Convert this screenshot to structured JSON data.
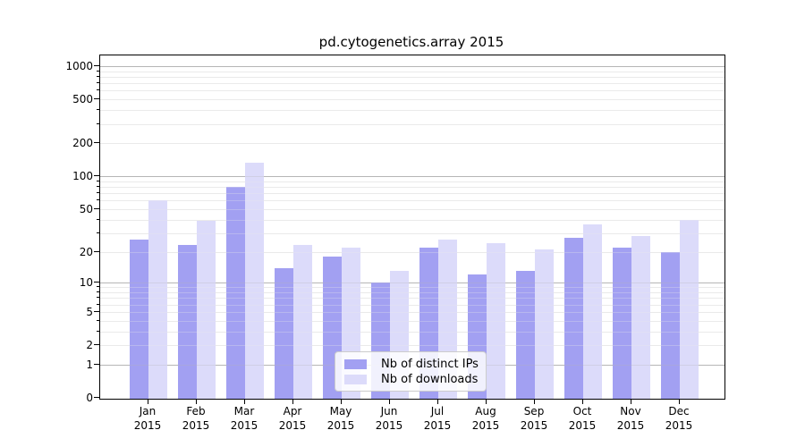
{
  "chart_data": {
    "type": "bar",
    "title": "pd.cytogenetics.array 2015",
    "categories": [
      "Jan",
      "Feb",
      "Mar",
      "Apr",
      "May",
      "Jun",
      "Jul",
      "Aug",
      "Sep",
      "Oct",
      "Nov",
      "Dec"
    ],
    "category_year": "2015",
    "series": [
      {
        "name": "Nb of distinct IPs",
        "color": "#a2a0f2",
        "values": [
          26,
          23,
          80,
          14,
          18,
          10,
          22,
          12,
          13,
          27,
          22,
          20
        ]
      },
      {
        "name": "Nb of downloads",
        "color": "#dcdbfa",
        "values": [
          60,
          39,
          133,
          23,
          22,
          13,
          26,
          24,
          21,
          36,
          28,
          40
        ]
      }
    ],
    "xlabel": "",
    "ylabel": "",
    "yscale": "log1p",
    "ylim": [
      0,
      1230
    ],
    "yticks": [
      0,
      1,
      2,
      5,
      10,
      20,
      50,
      100,
      200,
      500,
      1000
    ],
    "grid": "horizontal",
    "legend_position": "lower center",
    "colors": {
      "axis": "#000000",
      "grid_major": "#b6b6b6",
      "grid_minor": "#eaeaea",
      "legend_border": "#cccccc",
      "legend_bg": "rgba(255,255,255,0.85)"
    }
  }
}
